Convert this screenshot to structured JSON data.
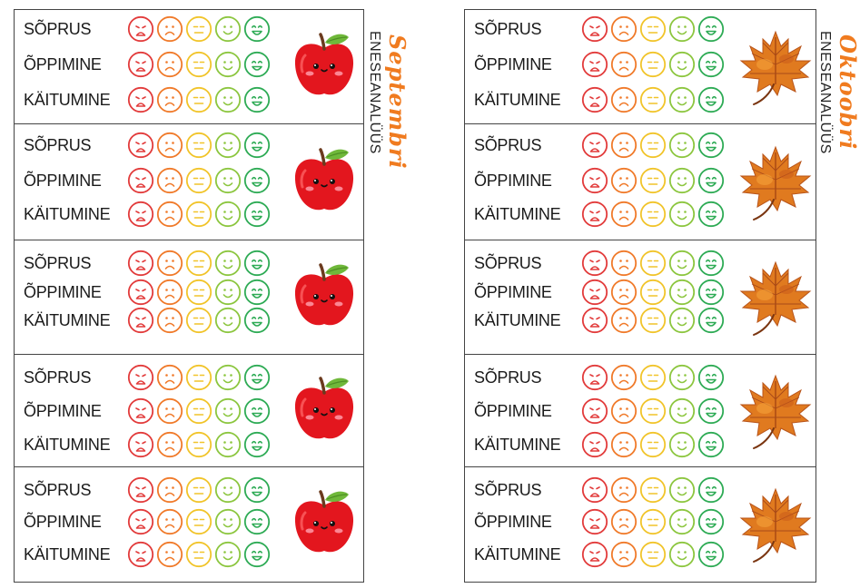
{
  "columns": [
    {
      "key": "left",
      "subtitle": "ENESEANALÜÜS",
      "month": "Septembri",
      "decoration": "apple-icon"
    },
    {
      "key": "right",
      "subtitle": "ENESEANALÜÜS",
      "month": "Oktoobri",
      "decoration": "maple-leaf-icon"
    }
  ],
  "categories": [
    "SÕPRUS",
    "ÕPPIMINE",
    "KÄITUMINE"
  ],
  "faces": [
    {
      "name": "very-sad-face-icon",
      "color": "#e23b3b"
    },
    {
      "name": "sad-face-icon",
      "color": "#f07a2a"
    },
    {
      "name": "neutral-face-icon",
      "color": "#f1c42a"
    },
    {
      "name": "happy-face-icon",
      "color": "#8cc63f"
    },
    {
      "name": "very-happy-face-icon",
      "color": "#2eab55"
    }
  ]
}
